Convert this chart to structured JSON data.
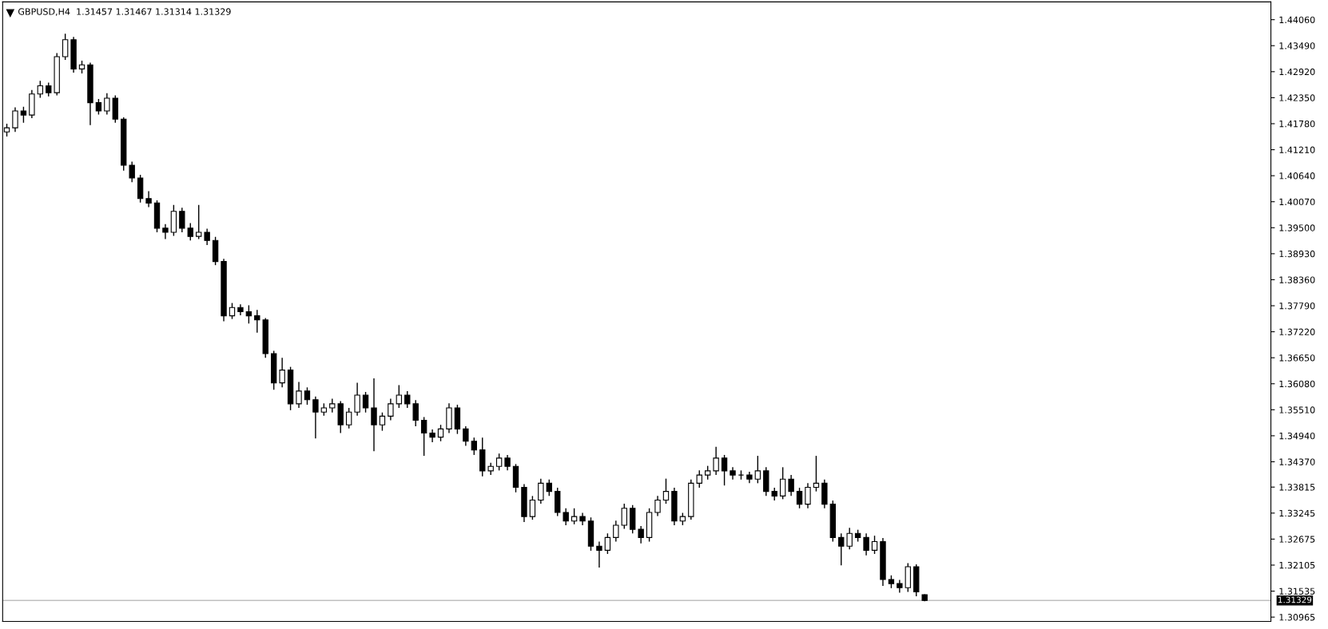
{
  "chart_data": {
    "type": "candlestick",
    "title": "GBPUSD,H4  1.31457 1.31467 1.31314 1.31329",
    "categories": [
      null,
      null,
      null,
      null,
      null,
      null,
      null,
      null,
      null,
      null,
      null,
      null,
      null,
      null,
      null,
      null,
      null,
      null,
      null,
      null,
      null,
      null,
      null,
      null,
      null,
      null,
      null,
      null,
      null,
      null,
      null,
      null,
      null,
      null,
      null,
      null,
      null,
      null,
      null,
      null,
      null,
      null,
      null,
      null,
      null,
      null,
      null,
      null,
      null,
      null,
      null,
      null,
      null,
      null,
      null,
      null,
      null,
      null,
      null,
      null,
      null,
      null,
      null,
      null,
      null,
      null,
      null,
      null,
      null,
      null,
      null,
      null,
      null,
      null,
      null,
      null,
      null,
      null,
      null,
      null,
      null,
      null,
      null,
      null,
      null,
      null,
      null,
      null,
      null,
      null,
      null,
      null,
      null,
      null,
      null,
      null,
      null,
      null,
      null,
      null,
      null,
      null,
      null,
      null,
      null,
      null,
      null,
      null,
      null,
      null,
      null,
      null,
      null,
      null,
      null,
      null,
      null,
      null,
      null,
      null,
      null,
      null,
      null,
      null,
      null,
      null,
      null,
      null,
      null,
      null,
      null,
      null,
      null,
      null,
      null,
      null,
      null,
      null,
      null,
      null,
      null,
      null,
      null,
      null,
      null,
      null,
      null,
      null,
      null,
      null,
      null,
      null
    ],
    "ohlc": [
      [
        1.416,
        1.4178,
        1.415,
        1.4169
      ],
      [
        1.4169,
        1.4214,
        1.416,
        1.4206
      ],
      [
        1.4206,
        1.4215,
        1.418,
        1.4197
      ],
      [
        1.4197,
        1.4252,
        1.419,
        1.4243
      ],
      [
        1.4243,
        1.4272,
        1.4235,
        1.4261
      ],
      [
        1.4261,
        1.4268,
        1.4238,
        1.4246
      ],
      [
        1.4246,
        1.4333,
        1.424,
        1.4325
      ],
      [
        1.4325,
        1.4375,
        1.4318,
        1.4362
      ],
      [
        1.4362,
        1.4368,
        1.429,
        1.4298
      ],
      [
        1.4298,
        1.4316,
        1.4288,
        1.4307
      ],
      [
        1.4307,
        1.4312,
        1.4175,
        1.4224
      ],
      [
        1.4224,
        1.4232,
        1.4198,
        1.4206
      ],
      [
        1.4206,
        1.4245,
        1.4198,
        1.4234
      ],
      [
        1.4234,
        1.424,
        1.418,
        1.4188
      ],
      [
        1.4188,
        1.4192,
        1.4075,
        1.4087
      ],
      [
        1.4087,
        1.4095,
        1.405,
        1.4059
      ],
      [
        1.4059,
        1.4066,
        1.4005,
        1.4014
      ],
      [
        1.4014,
        1.403,
        1.3995,
        1.4004
      ],
      [
        1.4004,
        1.401,
        1.394,
        1.3949
      ],
      [
        1.3949,
        1.3958,
        1.3925,
        1.394
      ],
      [
        1.394,
        1.4,
        1.3932,
        1.3986
      ],
      [
        1.3986,
        1.3994,
        1.394,
        1.3949
      ],
      [
        1.3949,
        1.396,
        1.3922,
        1.3931
      ],
      [
        1.3931,
        1.4,
        1.3925,
        1.394
      ],
      [
        1.394,
        1.3948,
        1.3912,
        1.3922
      ],
      [
        1.3922,
        1.393,
        1.3868,
        1.3876
      ],
      [
        1.3876,
        1.3882,
        1.3745,
        1.3757
      ],
      [
        1.3757,
        1.3785,
        1.375,
        1.3775
      ],
      [
        1.3775,
        1.3782,
        1.3758,
        1.3766
      ],
      [
        1.3766,
        1.378,
        1.374,
        1.3757
      ],
      [
        1.3757,
        1.377,
        1.372,
        1.3748
      ],
      [
        1.3748,
        1.3752,
        1.3665,
        1.3674
      ],
      [
        1.3674,
        1.368,
        1.3595,
        1.361
      ],
      [
        1.361,
        1.3665,
        1.36,
        1.3638
      ],
      [
        1.3638,
        1.3645,
        1.355,
        1.3564
      ],
      [
        1.3564,
        1.3612,
        1.3555,
        1.3592
      ],
      [
        1.3592,
        1.36,
        1.3562,
        1.3573
      ],
      [
        1.3573,
        1.358,
        1.3488,
        1.3546
      ],
      [
        1.3546,
        1.3565,
        1.3538,
        1.3555
      ],
      [
        1.3555,
        1.3575,
        1.3545,
        1.3564
      ],
      [
        1.3564,
        1.357,
        1.35,
        1.3518
      ],
      [
        1.3518,
        1.3555,
        1.351,
        1.3546
      ],
      [
        1.3546,
        1.361,
        1.3538,
        1.3583
      ],
      [
        1.3583,
        1.359,
        1.3545,
        1.3555
      ],
      [
        1.3555,
        1.362,
        1.346,
        1.3518
      ],
      [
        1.3518,
        1.3545,
        1.3505,
        1.3537
      ],
      [
        1.3537,
        1.3575,
        1.3528,
        1.3564
      ],
      [
        1.3564,
        1.3605,
        1.3555,
        1.3583
      ],
      [
        1.3583,
        1.3592,
        1.3555,
        1.3564
      ],
      [
        1.3564,
        1.3572,
        1.3515,
        1.3528
      ],
      [
        1.3528,
        1.3535,
        1.345,
        1.35
      ],
      [
        1.35,
        1.3508,
        1.348,
        1.3491
      ],
      [
        1.3491,
        1.3518,
        1.3482,
        1.3509
      ],
      [
        1.3509,
        1.3565,
        1.35,
        1.3555
      ],
      [
        1.3555,
        1.3562,
        1.3498,
        1.3509
      ],
      [
        1.3509,
        1.3515,
        1.3472,
        1.3482
      ],
      [
        1.3482,
        1.349,
        1.3452,
        1.3463
      ],
      [
        1.3463,
        1.349,
        1.3405,
        1.3417
      ],
      [
        1.3417,
        1.3435,
        1.3408,
        1.3427
      ],
      [
        1.3427,
        1.3455,
        1.3418,
        1.3445
      ],
      [
        1.3445,
        1.3452,
        1.3418,
        1.3427
      ],
      [
        1.3427,
        1.3432,
        1.337,
        1.3381
      ],
      [
        1.3381,
        1.3388,
        1.3305,
        1.3317
      ],
      [
        1.3317,
        1.3362,
        1.331,
        1.3353
      ],
      [
        1.3353,
        1.34,
        1.3345,
        1.339
      ],
      [
        1.339,
        1.3398,
        1.3362,
        1.3372
      ],
      [
        1.3372,
        1.338,
        1.3318,
        1.3326
      ],
      [
        1.3326,
        1.3335,
        1.3298,
        1.3307
      ],
      [
        1.3307,
        1.3335,
        1.33,
        1.3317
      ],
      [
        1.3317,
        1.3325,
        1.3298,
        1.3307
      ],
      [
        1.3307,
        1.3315,
        1.3242,
        1.3252
      ],
      [
        1.3252,
        1.3262,
        1.3205,
        1.3243
      ],
      [
        1.3243,
        1.328,
        1.3235,
        1.3271
      ],
      [
        1.3271,
        1.3308,
        1.3262,
        1.3298
      ],
      [
        1.3298,
        1.3345,
        1.329,
        1.3335
      ],
      [
        1.3335,
        1.3342,
        1.328,
        1.3289
      ],
      [
        1.3289,
        1.3296,
        1.3258,
        1.3271
      ],
      [
        1.3271,
        1.3335,
        1.3262,
        1.3326
      ],
      [
        1.3326,
        1.3362,
        1.3318,
        1.3353
      ],
      [
        1.3353,
        1.34,
        1.3345,
        1.3372
      ],
      [
        1.3372,
        1.338,
        1.3298,
        1.3307
      ],
      [
        1.3307,
        1.3325,
        1.3298,
        1.3317
      ],
      [
        1.3317,
        1.3398,
        1.331,
        1.339
      ],
      [
        1.339,
        1.3418,
        1.338,
        1.3408
      ],
      [
        1.3408,
        1.3428,
        1.3398,
        1.3417
      ],
      [
        1.3417,
        1.347,
        1.3408,
        1.3445
      ],
      [
        1.3445,
        1.3452,
        1.3385,
        1.3417
      ],
      [
        1.3417,
        1.3425,
        1.3398,
        1.3408
      ],
      [
        1.3408,
        1.3418,
        1.3398,
        1.3408
      ],
      [
        1.3408,
        1.3415,
        1.339,
        1.3399
      ],
      [
        1.3399,
        1.345,
        1.339,
        1.3417
      ],
      [
        1.3417,
        1.3425,
        1.3362,
        1.3372
      ],
      [
        1.3372,
        1.338,
        1.3352,
        1.3362
      ],
      [
        1.3362,
        1.3425,
        1.3355,
        1.3399
      ],
      [
        1.3399,
        1.3408,
        1.3362,
        1.3372
      ],
      [
        1.3372,
        1.338,
        1.3335,
        1.3344
      ],
      [
        1.3344,
        1.339,
        1.3335,
        1.3381
      ],
      [
        1.3381,
        1.345,
        1.3372,
        1.339
      ],
      [
        1.339,
        1.3398,
        1.3335,
        1.3344
      ],
      [
        1.3344,
        1.3352,
        1.3262,
        1.3271
      ],
      [
        1.3271,
        1.328,
        1.321,
        1.3252
      ],
      [
        1.3252,
        1.3292,
        1.3245,
        1.328
      ],
      [
        1.328,
        1.3288,
        1.3262,
        1.3271
      ],
      [
        1.3271,
        1.328,
        1.3232,
        1.3243
      ],
      [
        1.3243,
        1.3275,
        1.3235,
        1.3262
      ],
      [
        1.3262,
        1.327,
        1.3165,
        1.3179
      ],
      [
        1.3179,
        1.3188,
        1.316,
        1.317
      ],
      [
        1.317,
        1.3178,
        1.315,
        1.3161
      ],
      [
        1.3161,
        1.3215,
        1.3152,
        1.3207
      ],
      [
        1.3207,
        1.3212,
        1.3142,
        1.3152
      ],
      [
        1.31457,
        1.31467,
        1.31314,
        1.31329
      ],
      null,
      null,
      null,
      null,
      null,
      null,
      null,
      null,
      null,
      null,
      null,
      null,
      null,
      null,
      null,
      null,
      null,
      null,
      null,
      null,
      null,
      null,
      null,
      null,
      null,
      null,
      null,
      null,
      null,
      null,
      null,
      null,
      null,
      null,
      null,
      null,
      null,
      null,
      null,
      null,
      null
    ],
    "ylim": [
      1.3087,
      1.4445
    ],
    "yticks": [
      {
        "value": 1.4406,
        "label": "1.44060"
      },
      {
        "value": 1.4349,
        "label": "1.43490"
      },
      {
        "value": 1.4292,
        "label": "1.42920"
      },
      {
        "value": 1.4235,
        "label": "1.42350"
      },
      {
        "value": 1.4178,
        "label": "1.41780"
      },
      {
        "value": 1.4121,
        "label": "1.41210"
      },
      {
        "value": 1.4064,
        "label": "1.40640"
      },
      {
        "value": 1.4007,
        "label": "1.40070"
      },
      {
        "value": 1.395,
        "label": "1.39500"
      },
      {
        "value": 1.3893,
        "label": "1.38930"
      },
      {
        "value": 1.3836,
        "label": "1.38360"
      },
      {
        "value": 1.3779,
        "label": "1.37790"
      },
      {
        "value": 1.3722,
        "label": "1.37220"
      },
      {
        "value": 1.3665,
        "label": "1.36650"
      },
      {
        "value": 1.3608,
        "label": "1.36080"
      },
      {
        "value": 1.3551,
        "label": "1.35510"
      },
      {
        "value": 1.3494,
        "label": "1.34940"
      },
      {
        "value": 1.3437,
        "label": "1.34370"
      },
      {
        "value": 1.33815,
        "label": "1.33815"
      },
      {
        "value": 1.33245,
        "label": "1.33245"
      },
      {
        "value": 1.32675,
        "label": "1.32675"
      },
      {
        "value": 1.32105,
        "label": "1.32105"
      },
      {
        "value": 1.31535,
        "label": "1.31535"
      },
      {
        "value": 1.30965,
        "label": "1.30965"
      }
    ],
    "ref_lines": [
      {
        "axis": "y",
        "value": 1.31329,
        "label": "1.31329",
        "color": "#c0c0c0"
      }
    ],
    "tick_labels": "y",
    "grid": false
  }
}
